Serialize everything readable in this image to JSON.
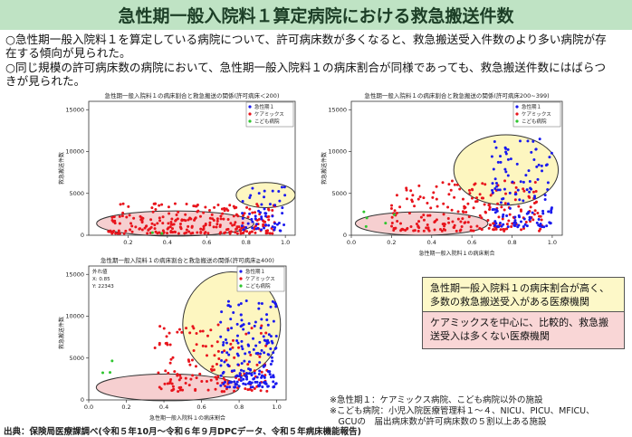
{
  "header": {
    "title": "急性期一般入院料１算定病院における救急搬送件数"
  },
  "bullets": [
    "○急性期一般入院料１を算定している病院について、許可病床数が多くなると、救急搬送受入件数のより多い病院が存在する傾向が見られた。",
    "○同じ規模の許可病床数の病院において、急性期一般入院料１の病床割合が同様であっても、救急搬送件数にはばらつきが見られた。"
  ],
  "legend_boxes": {
    "yellow": "急性期一般入院料１の病床割合が高く、多数の救急搬送受入がある医療機関",
    "pink": "ケアミックスを中心に、比較的、救急搬送受入は多くない医療機関"
  },
  "notes": [
    "※急性期１：ケアミックス病院、こども病院以外の施設",
    "※こども病院：小児入院医療管理料１～４、NICU、PICU、MFICU、",
    "　GCUの　届出病床数が許可病床数の５割以上ある施設"
  ],
  "source": "出典：保険局医療課調べ(令和５年10月～令和６年９月DPCデータ、令和５年病床機能報告)",
  "colors": {
    "acute1": "#1a1aee",
    "caremix": "#e8141c",
    "child": "#2ec52e",
    "yellow_fill": "#fdf6c0",
    "pink_fill": "#f6cfd0",
    "title_bg": "#bfe3c4"
  },
  "chart_data": [
    {
      "type": "scatter",
      "title": "急性期一般入院料１の病床割合と救急搬送の関係(許可病床＜200)",
      "xlabel": "",
      "ylabel": "救急搬送件数",
      "xlim": [
        0.0,
        1.05
      ],
      "ylim": [
        0,
        16000
      ],
      "xticks": [
        0.2,
        0.4,
        0.6,
        0.8,
        1.0
      ],
      "yticks": [
        0,
        5000,
        10000,
        15000
      ],
      "legend": [
        "急性期１",
        "ケアミックス",
        "こども病院"
      ],
      "ellipses": [
        {
          "kind": "yellow",
          "cx": 0.9,
          "cy": 4800,
          "rx": 0.15,
          "ry": 1500
        },
        {
          "kind": "pink",
          "cx": 0.44,
          "cy": 1400,
          "rx": 0.4,
          "ry": 1500
        }
      ],
      "series": [
        {
          "name": "ケアミックス",
          "xrange": [
            0.1,
            0.95
          ],
          "yrange": [
            200,
            3800
          ],
          "n": 260,
          "seed": 11
        },
        {
          "name": "急性期１",
          "xrange": [
            0.78,
            1.0
          ],
          "yrange": [
            500,
            6000
          ],
          "n": 55,
          "seed": 12
        },
        {
          "name": "こども病院",
          "xrange": [
            0.3,
            0.4
          ],
          "yrange": [
            200,
            600
          ],
          "n": 2,
          "seed": 13
        }
      ],
      "annotation": []
    },
    {
      "type": "scatter",
      "title": "急性期一般入院料１の病床割合と救急搬送の関係(許可病床200~399)",
      "xlabel": "急性期一般入院料１の病床割合",
      "ylabel": "救急搬送件数",
      "xlim": [
        0.0,
        1.05
      ],
      "ylim": [
        0,
        16000
      ],
      "xticks": [
        0.0,
        0.2,
        0.4,
        0.6,
        0.8,
        1.0
      ],
      "yticks": [
        0,
        5000,
        10000,
        15000
      ],
      "legend": [
        "急性期１",
        "ケアミックス",
        "こども病院"
      ],
      "ellipses": [
        {
          "kind": "yellow",
          "cx": 0.77,
          "cy": 7800,
          "rx": 0.26,
          "ry": 4200
        },
        {
          "kind": "pink",
          "cx": 0.35,
          "cy": 1400,
          "rx": 0.33,
          "ry": 1400
        }
      ],
      "series": [
        {
          "name": "ケアミックス",
          "xrange": [
            0.2,
            0.95
          ],
          "yrange": [
            500,
            6500
          ],
          "n": 230,
          "seed": 21
        },
        {
          "name": "急性期１",
          "xrange": [
            0.7,
            1.0
          ],
          "yrange": [
            1000,
            11500
          ],
          "n": 130,
          "seed": 22
        },
        {
          "name": "こども病院",
          "xrange": [
            0.0,
            0.3
          ],
          "yrange": [
            500,
            3200
          ],
          "n": 5,
          "seed": 23
        }
      ],
      "annotation": []
    },
    {
      "type": "scatter",
      "title": "急性期一般入院料１の病床割合と救急搬送の関係(許可病床≧400)",
      "xlabel": "急性期一般入院料１の病床割合",
      "ylabel": "救急搬送件数",
      "xlim": [
        0.0,
        1.05
      ],
      "ylim": [
        0,
        16000
      ],
      "xticks": [
        0.0,
        0.2,
        0.4,
        0.6,
        0.8,
        1.0
      ],
      "yticks": [
        0,
        5000,
        10000,
        15000
      ],
      "legend": [
        "急性期１",
        "ケアミックス",
        "こども病院"
      ],
      "ellipses": [
        {
          "kind": "yellow",
          "cx": 0.76,
          "cy": 9000,
          "rx": 0.26,
          "ry": 6300
        },
        {
          "kind": "pink",
          "cx": 0.42,
          "cy": 1500,
          "rx": 0.38,
          "ry": 1600
        }
      ],
      "series": [
        {
          "name": "ケアミックス",
          "xrange": [
            0.35,
            0.95
          ],
          "yrange": [
            1000,
            9000
          ],
          "n": 150,
          "seed": 31
        },
        {
          "name": "急性期１",
          "xrange": [
            0.7,
            1.0
          ],
          "yrange": [
            1500,
            12000
          ],
          "n": 190,
          "seed": 32
        },
        {
          "name": "こども病院",
          "xrange": [
            0.0,
            0.3
          ],
          "yrange": [
            3000,
            5000
          ],
          "n": 3,
          "seed": 33
        }
      ],
      "annotation": [
        "外れ値",
        "X: 0.85",
        "Y: 22343"
      ]
    }
  ]
}
